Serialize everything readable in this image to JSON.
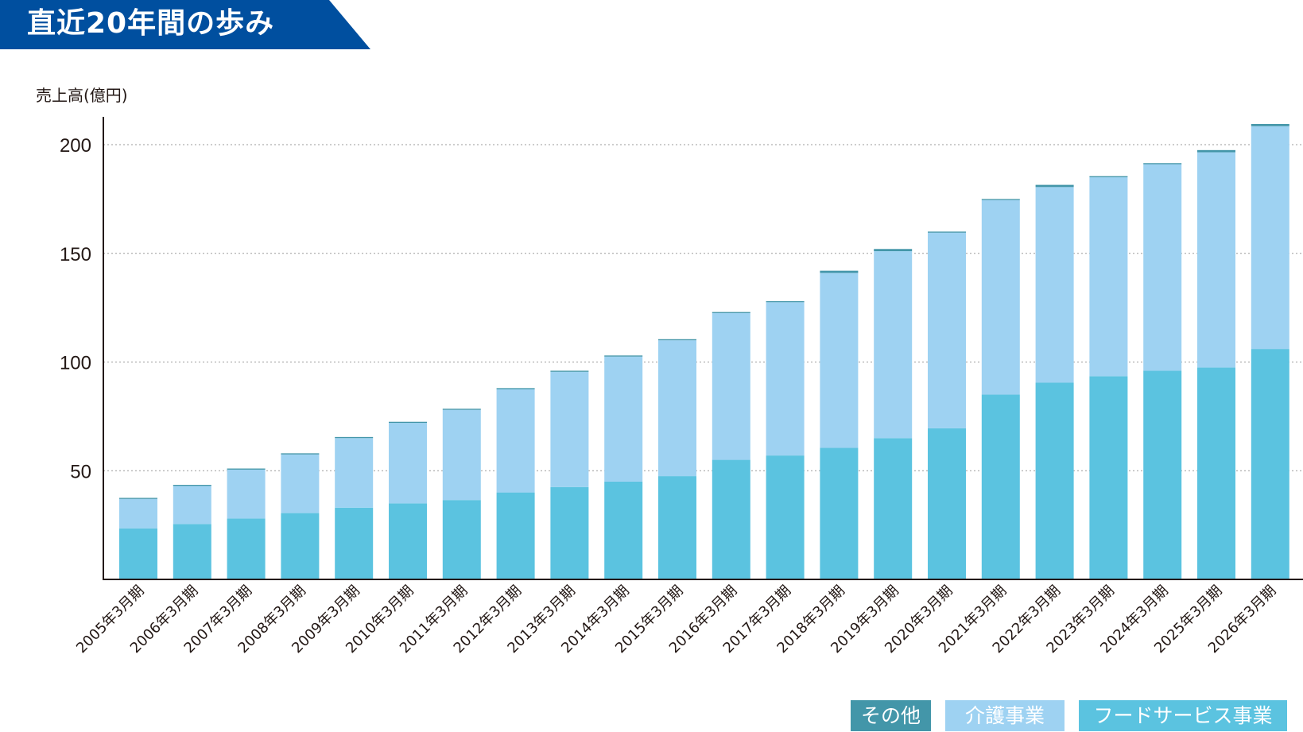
{
  "title": "直近20年間の歩み",
  "colors": {
    "banner": "#004f9f",
    "food": "#5bc3e0",
    "care": "#9ed2f2",
    "other": "#4396a9",
    "grid": "#9a9a9a",
    "axis": "#231815"
  },
  "chart_data": {
    "type": "bar",
    "stacked": true,
    "ylabel": "売上高(億円)",
    "ylim": [
      0,
      213
    ],
    "yticks": [
      50,
      100,
      150,
      200
    ],
    "grid": "horizontal dotted",
    "categories": [
      "2005年3月期",
      "2006年3月期",
      "2007年3月期",
      "2008年3月期",
      "2009年3月期",
      "2010年3月期",
      "2011年3月期",
      "2012年3月期",
      "2013年3月期",
      "2014年3月期",
      "2015年3月期",
      "2016年3月期",
      "2017年3月期",
      "2018年3月期",
      "2019年3月期",
      "2020年3月期",
      "2021年3月期",
      "2022年3月期",
      "2023年3月期",
      "2024年3月期",
      "2025年3月期",
      "2026年3月期"
    ],
    "series": [
      {
        "name": "フードサービス事業",
        "color": "#5bc3e0",
        "values": [
          23.5,
          25.5,
          28,
          30.5,
          33,
          35,
          36.5,
          40,
          42.5,
          45,
          47.5,
          55,
          57,
          60.5,
          65,
          69.5,
          85,
          90.5,
          93.5,
          96,
          97.5,
          106
        ]
      },
      {
        "name": "介護事業",
        "color": "#9ed2f2",
        "values": [
          13.5,
          17.5,
          22.5,
          27,
          32,
          37,
          41.5,
          47.5,
          53,
          57.5,
          62.5,
          67.5,
          70.5,
          80.5,
          86,
          90,
          89.5,
          90,
          91.5,
          95,
          99,
          102.5
        ]
      },
      {
        "name": "その他",
        "color": "#4396a9",
        "values": [
          0.5,
          0.5,
          0.5,
          0.5,
          0.5,
          0.5,
          0.5,
          0.5,
          0.5,
          0.5,
          0.5,
          0.5,
          0.5,
          1,
          1,
          0.5,
          0.5,
          1,
          0.5,
          0.5,
          1,
          1
        ]
      }
    ]
  },
  "legend": {
    "other": "その他",
    "care": "介護事業",
    "food": "フードサービス事業"
  }
}
